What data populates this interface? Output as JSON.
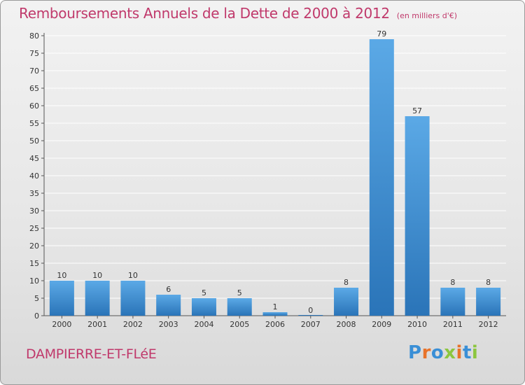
{
  "header": {
    "title": "Remboursements Annuels de la Dette de 2000 à 2012",
    "subtitle": "(en milliers d'€)"
  },
  "footer": {
    "commune": "DAMPIERRE-ET-FLéE",
    "logo": "Proxiti",
    "logo_colors": [
      "#3a8fd6",
      "#e8732a",
      "#3a8fd6",
      "#8cc63f",
      "#e8732a",
      "#3a8fd6",
      "#8cc63f"
    ]
  },
  "chart_data": {
    "type": "bar",
    "categories": [
      "2000",
      "2001",
      "2002",
      "2003",
      "2004",
      "2005",
      "2006",
      "2007",
      "2008",
      "2009",
      "2010",
      "2011",
      "2012"
    ],
    "values": [
      10,
      10,
      10,
      6,
      5,
      5,
      1,
      0,
      8,
      79,
      57,
      8,
      8
    ],
    "data_labels": [
      "10",
      "10",
      "10",
      "6",
      "5",
      "5",
      "1",
      "0",
      "8",
      "79",
      "57",
      "8",
      "8"
    ],
    "ylim": [
      0,
      80
    ],
    "yticks": [
      "0",
      "5",
      "10",
      "15",
      "20",
      "25",
      "30",
      "35",
      "40",
      "45",
      "50",
      "55",
      "60",
      "65",
      "70",
      "75",
      "80"
    ],
    "grid": true,
    "bar_color_top": "#5ba9e6",
    "bar_color_bottom": "#2a74b8",
    "xlabel": "",
    "ylabel": ""
  }
}
